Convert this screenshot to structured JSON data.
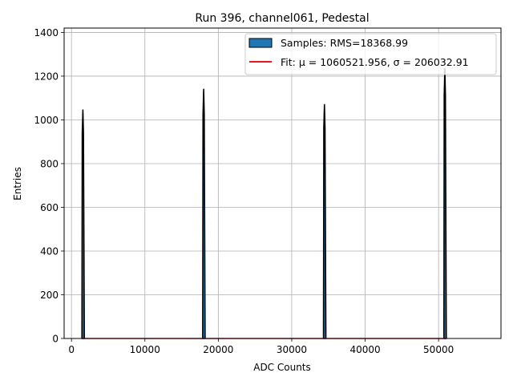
{
  "chart_data": {
    "type": "bar",
    "title": "Run 396, channel061, Pedestal",
    "xlabel": "ADC Counts",
    "ylabel": "Entries",
    "xlim": [
      -1000,
      58500
    ],
    "ylim": [
      0,
      1420
    ],
    "xticks": [
      0,
      10000,
      20000,
      30000,
      40000,
      50000
    ],
    "xtick_labels": [
      "0",
      "10000",
      "20000",
      "30000",
      "40000",
      "50000"
    ],
    "yticks": [
      0,
      200,
      400,
      600,
      800,
      1000,
      1200,
      1400
    ],
    "ytick_labels": [
      "0",
      "200",
      "400",
      "600",
      "800",
      "1000",
      "1200",
      "1400"
    ],
    "grid": true,
    "legend_position": "top-right",
    "series": [
      {
        "name": "Samples: RMS=18368.99",
        "kind": "histogram",
        "color": "#1f77b4",
        "edgecolor": "#000000",
        "peaks": [
          {
            "center": 1600,
            "height": 1045
          },
          {
            "center": 18050,
            "height": 1140
          },
          {
            "center": 34500,
            "height": 1070
          },
          {
            "center": 50900,
            "height": 1235
          }
        ]
      },
      {
        "name": "Fit: μ = 1060521.956, σ = 206032.91",
        "kind": "line",
        "color": "#e8191c",
        "x": [
          1500,
          51000
        ],
        "y": [
          0,
          0
        ]
      }
    ]
  }
}
